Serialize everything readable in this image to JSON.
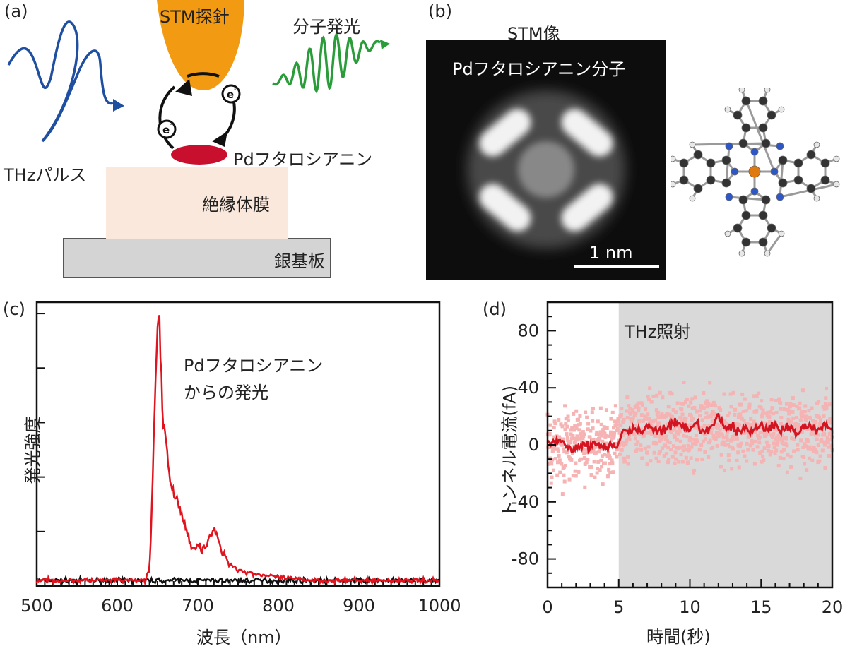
{
  "panel_a": {
    "label": "(a)",
    "tip": "STM探針",
    "emission": "分子発光",
    "thz": "THzパルス",
    "molecule": "Pdフタロシアニン",
    "film": "絶縁体膜",
    "substrate": "銀基板",
    "electron": "e",
    "electron_sup": "-"
  },
  "panel_b": {
    "label": "(b)",
    "title": "STM像",
    "molecule": "Pdフタロシアニン分子",
    "scale_bar": "1 nm"
  },
  "panel_c": {
    "label": "(c)",
    "annotation_line1": "Pdフタロシアニン",
    "annotation_line2": "からの発光",
    "ylabel": "発光強度",
    "xlabel": "波長（nm）"
  },
  "panel_d": {
    "label": "(d)",
    "annotation": "THz照射",
    "ylabel": "トンネル電流(fA)",
    "xlabel": "時間(秒)"
  },
  "colors": {
    "tip": "#f29a12",
    "thz": "#1f4fa0",
    "emission": "#2a9d3a",
    "molecule": "#c8102e",
    "film": "#fbe8dc",
    "substrate": "#d4d4d4",
    "spectrum_red": "#e0141e",
    "spectrum_black": "#111111",
    "scatter": "#f5b3b3",
    "shade": "#d9d9d9"
  },
  "chart_data": [
    {
      "type": "line",
      "panel": "c",
      "xlim": [
        500,
        1000
      ],
      "xticks": [
        500,
        600,
        700,
        800,
        900,
        1000
      ],
      "ylim": [
        0,
        1
      ],
      "series": [
        {
          "color": "red",
          "x": [
            500,
            550,
            600,
            635,
            640,
            643,
            646,
            649,
            651,
            653,
            655,
            657,
            660,
            663,
            667,
            670,
            675,
            680,
            685,
            690,
            695,
            700,
            705,
            710,
            715,
            720,
            725,
            730,
            735,
            740,
            750,
            760,
            770,
            780,
            800,
            820,
            850,
            900,
            950,
            1000
          ],
          "y": [
            0.02,
            0.02,
            0.02,
            0.02,
            0.06,
            0.3,
            0.6,
            0.85,
            0.97,
            0.88,
            0.72,
            0.58,
            0.52,
            0.44,
            0.36,
            0.34,
            0.3,
            0.26,
            0.2,
            0.16,
            0.14,
            0.15,
            0.13,
            0.15,
            0.18,
            0.2,
            0.17,
            0.12,
            0.1,
            0.08,
            0.06,
            0.05,
            0.045,
            0.04,
            0.03,
            0.025,
            0.02,
            0.02,
            0.02,
            0.02
          ]
        },
        {
          "color": "black",
          "x": [
            500,
            1000
          ],
          "y": [
            0.02,
            0.02
          ]
        }
      ]
    },
    {
      "type": "scatter",
      "panel": "d",
      "xlim": [
        0,
        20
      ],
      "ylim": [
        -100,
        100
      ],
      "xticks": [
        0,
        5,
        10,
        15,
        20
      ],
      "yticks": [
        -80,
        -40,
        0,
        40,
        80
      ],
      "shaded_from": 5,
      "series": [
        {
          "color": "dark-red",
          "x": [
            0,
            0.5,
            1,
            1.5,
            2,
            2.5,
            3,
            3.5,
            4,
            4.5,
            4.9,
            5.2,
            5.6,
            6,
            6.5,
            7,
            7.5,
            8,
            8.5,
            9,
            9.5,
            10,
            10.5,
            11,
            11.5,
            12,
            12.5,
            13,
            13.5,
            14,
            14.5,
            15,
            15.5,
            16,
            16.5,
            17,
            17.5,
            18,
            18.5,
            19,
            19.5,
            20
          ],
          "y": [
            2,
            1,
            4,
            -3,
            -2,
            0,
            -1,
            1,
            -2,
            0,
            -3,
            8,
            10,
            12,
            8,
            14,
            11,
            9,
            13,
            15,
            12,
            10,
            14,
            9,
            12,
            20,
            11,
            13,
            9,
            12,
            10,
            14,
            11,
            13,
            10,
            12,
            9,
            13,
            12,
            11,
            14,
            12
          ]
        }
      ]
    }
  ]
}
